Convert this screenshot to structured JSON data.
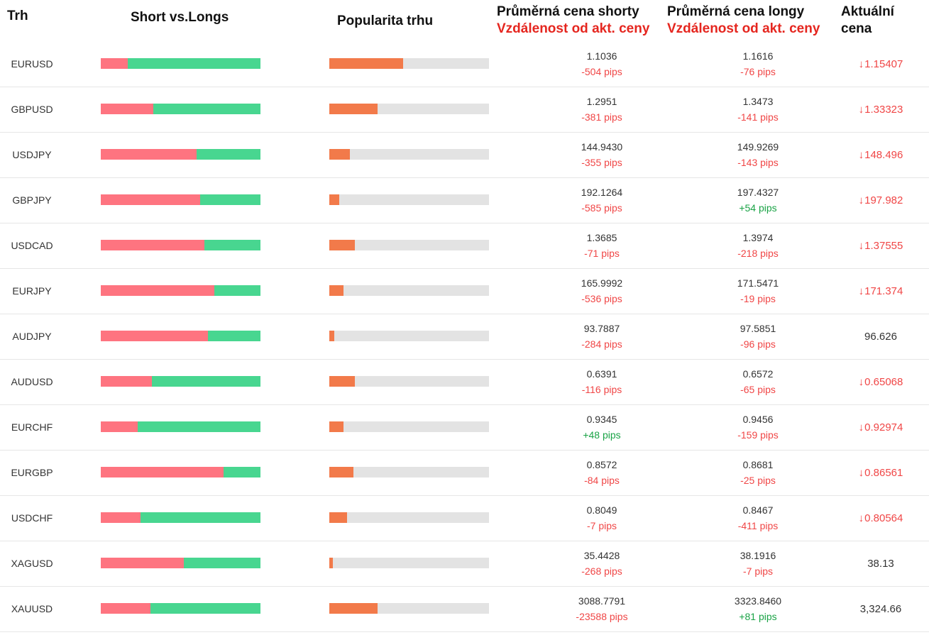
{
  "colors": {
    "short": "#fe7480",
    "long": "#48d690",
    "popularity": "#f27a4a",
    "track": "#e3e3e3",
    "negative": "#f04646",
    "positive": "#1aa346",
    "header_red": "#e5261f"
  },
  "header": {
    "market": "Trh",
    "short_vs_longs": "Short vs.Longs",
    "popularity": "Popularita trhu",
    "avg_short_title": "Průměrná cena shorty",
    "avg_short_sub": "Vzdálenost od akt. ceny",
    "avg_long_title": "Průměrná cena longy",
    "avg_long_sub": "Vzdálenost od akt. ceny",
    "current_line1": "Aktuální",
    "current_line2": "cena"
  },
  "rows": [
    {
      "symbol": "EURUSD",
      "short_fraction": 0.17,
      "popularity": 0.46,
      "short_price": "1.1036",
      "short_pips": "-504 pips",
      "long_price": "1.1616",
      "long_pips": "-76 pips",
      "current": "1.15407",
      "down": true
    },
    {
      "symbol": "GBPUSD",
      "short_fraction": 0.33,
      "popularity": 0.3,
      "short_price": "1.2951",
      "short_pips": "-381 pips",
      "long_price": "1.3473",
      "long_pips": "-141 pips",
      "current": "1.33323",
      "down": true
    },
    {
      "symbol": "USDJPY",
      "short_fraction": 0.6,
      "popularity": 0.13,
      "short_price": "144.9430",
      "short_pips": "-355 pips",
      "long_price": "149.9269",
      "long_pips": "-143 pips",
      "current": "148.496",
      "down": true
    },
    {
      "symbol": "GBPJPY",
      "short_fraction": 0.62,
      "popularity": 0.06,
      "short_price": "192.1264",
      "short_pips": "-585 pips",
      "long_price": "197.4327",
      "long_pips": "+54 pips",
      "current": "197.982",
      "down": true
    },
    {
      "symbol": "USDCAD",
      "short_fraction": 0.65,
      "popularity": 0.16,
      "short_price": "1.3685",
      "short_pips": "-71 pips",
      "long_price": "1.3974",
      "long_pips": "-218 pips",
      "current": "1.37555",
      "down": true
    },
    {
      "symbol": "EURJPY",
      "short_fraction": 0.71,
      "popularity": 0.09,
      "short_price": "165.9992",
      "short_pips": "-536 pips",
      "long_price": "171.5471",
      "long_pips": "-19 pips",
      "current": "171.374",
      "down": true
    },
    {
      "symbol": "AUDJPY",
      "short_fraction": 0.67,
      "popularity": 0.03,
      "short_price": "93.7887",
      "short_pips": "-284 pips",
      "long_price": "97.5851",
      "long_pips": "-96 pips",
      "current": "96.626",
      "down": false
    },
    {
      "symbol": "AUDUSD",
      "short_fraction": 0.32,
      "popularity": 0.16,
      "short_price": "0.6391",
      "short_pips": "-116 pips",
      "long_price": "0.6572",
      "long_pips": "-65 pips",
      "current": "0.65068",
      "down": true
    },
    {
      "symbol": "EURCHF",
      "short_fraction": 0.23,
      "popularity": 0.09,
      "short_price": "0.9345",
      "short_pips": "+48 pips",
      "long_price": "0.9456",
      "long_pips": "-159 pips",
      "current": "0.92974",
      "down": true
    },
    {
      "symbol": "EURGBP",
      "short_fraction": 0.77,
      "popularity": 0.15,
      "short_price": "0.8572",
      "short_pips": "-84 pips",
      "long_price": "0.8681",
      "long_pips": "-25 pips",
      "current": "0.86561",
      "down": true
    },
    {
      "symbol": "USDCHF",
      "short_fraction": 0.25,
      "popularity": 0.11,
      "short_price": "0.8049",
      "short_pips": "-7 pips",
      "long_price": "0.8467",
      "long_pips": "-411 pips",
      "current": "0.80564",
      "down": true
    },
    {
      "symbol": "XAGUSD",
      "short_fraction": 0.52,
      "popularity": 0.02,
      "short_price": "35.4428",
      "short_pips": "-268 pips",
      "long_price": "38.1916",
      "long_pips": "-7 pips",
      "current": "38.13",
      "down": false
    },
    {
      "symbol": "XAUUSD",
      "short_fraction": 0.31,
      "popularity": 0.3,
      "short_price": "3088.7791",
      "short_pips": "-23588 pips",
      "long_price": "3323.8460",
      "long_pips": "+81 pips",
      "current": "3,324.66",
      "down": false
    }
  ]
}
